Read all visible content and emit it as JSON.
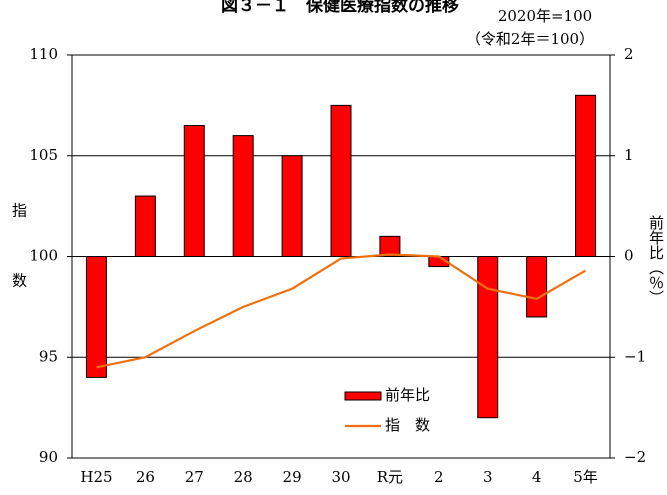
{
  "chart_data": {
    "type": "combo",
    "title": "図３－１　保健医療指数の推移",
    "notes": [
      "2020年=100",
      "（令和2年＝100）"
    ],
    "y_label": "指　数",
    "y2_label": "前年比（％）",
    "categories": [
      "H25",
      "26",
      "27",
      "28",
      "29",
      "30",
      "R元",
      "2",
      "3",
      "4",
      "5年"
    ],
    "series": [
      {
        "name": "前年比",
        "type": "bar",
        "axis": "y2",
        "color": "#ff0000",
        "values": [
          -1.2,
          0.6,
          1.3,
          1.2,
          1.0,
          1.5,
          0.2,
          -0.1,
          -1.6,
          -0.6,
          1.6
        ]
      },
      {
        "name": "指　数",
        "type": "line",
        "color": "#f07010",
        "values": [
          94.5,
          95.0,
          96.3,
          97.5,
          98.4,
          99.9,
          100.1,
          100.0,
          98.4,
          97.9,
          99.3
        ]
      }
    ],
    "ylim": [
      90,
      110
    ],
    "yticks": [
      90,
      95,
      100,
      105,
      110
    ],
    "y2lim": [
      -2,
      2
    ],
    "y2ticks": [
      {
        "value": -2,
        "label": "−2"
      },
      {
        "value": -1,
        "label": "−1"
      },
      0,
      1,
      2
    ],
    "grid": true
  }
}
